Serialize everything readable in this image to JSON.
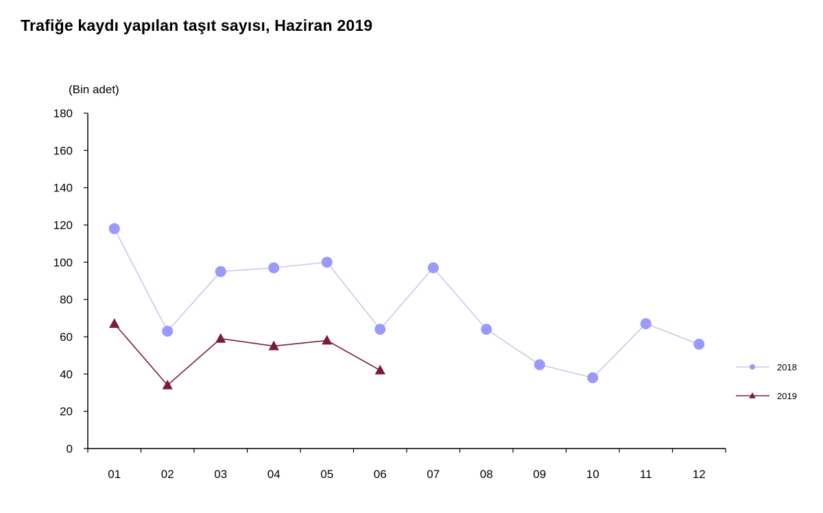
{
  "chart_data": {
    "type": "line",
    "title": "Trafiğe kaydı yapılan taşıt sayısı, Haziran 2019",
    "ylabel": "(Bin adet)",
    "xlabel": "",
    "categories": [
      "01",
      "02",
      "03",
      "04",
      "05",
      "06",
      "07",
      "08",
      "09",
      "10",
      "11",
      "12"
    ],
    "ylim": [
      0,
      180
    ],
    "yticks": [
      0,
      20,
      40,
      60,
      80,
      100,
      120,
      140,
      160,
      180
    ],
    "grid": false,
    "legend_position": "right",
    "series": [
      {
        "name": "2018",
        "marker": "circle",
        "color": "#9999ff",
        "values": [
          118,
          63,
          95,
          97,
          100,
          64,
          97,
          64,
          45,
          38,
          67,
          56
        ]
      },
      {
        "name": "2019",
        "marker": "triangle",
        "color": "#7b1a3a",
        "values": [
          67,
          34,
          59,
          55,
          58,
          42,
          null,
          null,
          null,
          null,
          null,
          null
        ]
      }
    ]
  }
}
